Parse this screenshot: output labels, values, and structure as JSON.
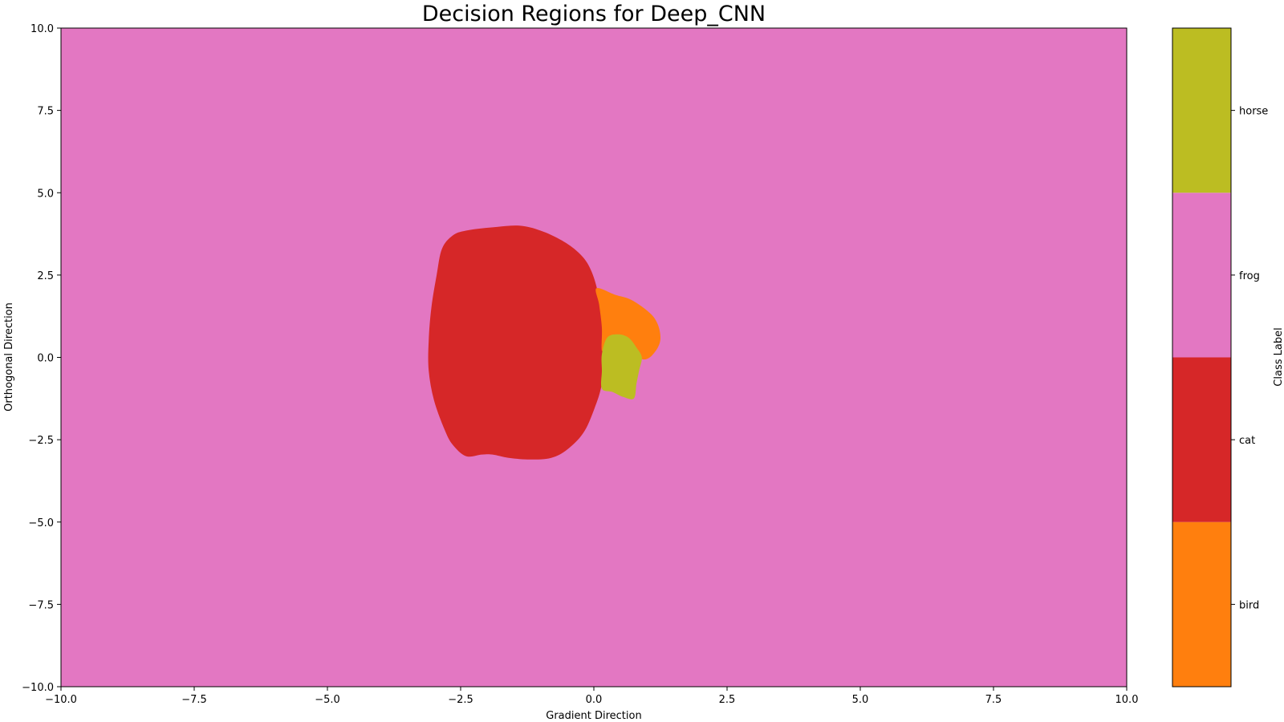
{
  "chart_data": {
    "type": "heatmap",
    "title": "Decision Regions for Deep_CNN",
    "xlabel": "Gradient Direction",
    "ylabel": "Orthogonal Direction",
    "xlim": [
      -10,
      10
    ],
    "ylim": [
      -10,
      10
    ],
    "grid": false,
    "x_ticks": [
      {
        "value": -10,
        "label": "−10.0"
      },
      {
        "value": -7.5,
        "label": "−7.5"
      },
      {
        "value": -5,
        "label": "−5.0"
      },
      {
        "value": -2.5,
        "label": "−2.5"
      },
      {
        "value": 0,
        "label": "0.0"
      },
      {
        "value": 2.5,
        "label": "2.5"
      },
      {
        "value": 5,
        "label": "5.0"
      },
      {
        "value": 7.5,
        "label": "7.5"
      },
      {
        "value": 10,
        "label": "10.0"
      }
    ],
    "y_ticks": [
      {
        "value": 10,
        "label": "10.0"
      },
      {
        "value": 7.5,
        "label": "7.5"
      },
      {
        "value": 5,
        "label": "5.0"
      },
      {
        "value": 2.5,
        "label": "2.5"
      },
      {
        "value": 0,
        "label": "0.0"
      },
      {
        "value": -2.5,
        "label": "−2.5"
      },
      {
        "value": -5,
        "label": "−5.0"
      },
      {
        "value": -7.5,
        "label": "−7.5"
      },
      {
        "value": -10,
        "label": "−10.0"
      }
    ],
    "background_class": "frog",
    "regions": [
      {
        "class": "cat",
        "boundary": [
          [
            -2.4,
            3.85
          ],
          [
            -1.9,
            3.95
          ],
          [
            -1.4,
            4.0
          ],
          [
            -1.0,
            3.85
          ],
          [
            -0.6,
            3.55
          ],
          [
            -0.3,
            3.2
          ],
          [
            -0.1,
            2.8
          ],
          [
            0.05,
            2.15
          ],
          [
            0.15,
            1.2
          ],
          [
            0.2,
            0.3
          ],
          [
            0.15,
            -0.8
          ],
          [
            0.0,
            -1.6
          ],
          [
            -0.2,
            -2.3
          ],
          [
            -0.5,
            -2.8
          ],
          [
            -0.8,
            -3.05
          ],
          [
            -1.2,
            -3.1
          ],
          [
            -1.6,
            -3.05
          ],
          [
            -1.9,
            -2.95
          ],
          [
            -2.1,
            -2.95
          ],
          [
            -2.4,
            -3.0
          ],
          [
            -2.65,
            -2.65
          ],
          [
            -2.8,
            -2.2
          ],
          [
            -3.0,
            -1.3
          ],
          [
            -3.1,
            -0.4
          ],
          [
            -3.1,
            0.5
          ],
          [
            -3.05,
            1.5
          ],
          [
            -2.95,
            2.5
          ],
          [
            -2.85,
            3.3
          ],
          [
            -2.65,
            3.7
          ]
        ]
      },
      {
        "class": "bird",
        "boundary": [
          [
            0.05,
            2.1
          ],
          [
            0.4,
            1.9
          ],
          [
            0.7,
            1.75
          ],
          [
            1.05,
            1.35
          ],
          [
            1.2,
            1.0
          ],
          [
            1.25,
            0.6
          ],
          [
            1.2,
            0.3
          ],
          [
            1.05,
            0.0
          ],
          [
            0.9,
            -0.05
          ],
          [
            0.8,
            0.2
          ],
          [
            0.6,
            0.55
          ],
          [
            0.4,
            0.65
          ],
          [
            0.25,
            0.5
          ],
          [
            0.15,
            0.2
          ],
          [
            0.15,
            0.9
          ],
          [
            0.1,
            1.6
          ]
        ]
      },
      {
        "class": "horse",
        "boundary": [
          [
            0.25,
            0.6
          ],
          [
            0.45,
            0.7
          ],
          [
            0.65,
            0.6
          ],
          [
            0.8,
            0.3
          ],
          [
            0.9,
            0.0
          ],
          [
            0.85,
            -0.4
          ],
          [
            0.8,
            -0.8
          ],
          [
            0.75,
            -1.25
          ],
          [
            0.55,
            -1.2
          ],
          [
            0.35,
            -1.05
          ],
          [
            0.15,
            -0.95
          ],
          [
            0.15,
            -0.4
          ],
          [
            0.15,
            0.1
          ]
        ]
      }
    ],
    "colorbar": {
      "label": "Class Label",
      "classes": [
        {
          "name": "bird",
          "color": "#ff7f0e"
        },
        {
          "name": "cat",
          "color": "#d62728"
        },
        {
          "name": "frog",
          "color": "#e377c2"
        },
        {
          "name": "horse",
          "color": "#bcbd22"
        }
      ]
    }
  }
}
